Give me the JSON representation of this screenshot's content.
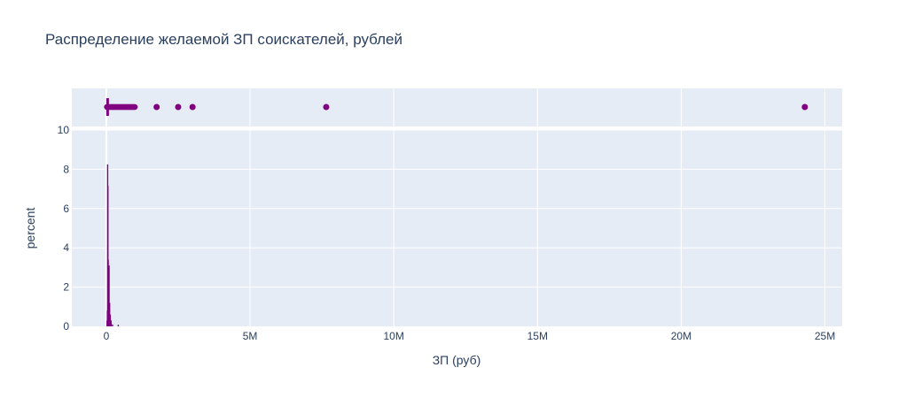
{
  "chart_data": {
    "type": "histogram",
    "title": "Распределение желаемой ЗП соискателей, рублей",
    "xlabel": "ЗП (руб)",
    "ylabel": "percent",
    "x_tick_labels": [
      "0",
      "5M",
      "10M",
      "15M",
      "20M",
      "25M"
    ],
    "x_tick_values": [
      0,
      5000000,
      10000000,
      15000000,
      20000000,
      25000000
    ],
    "y_tick_labels": [
      "0",
      "2",
      "4",
      "6",
      "8",
      "10"
    ],
    "y_tick_values": [
      0,
      2,
      4,
      6,
      8,
      10
    ],
    "xlim": [
      -1200000,
      25600000
    ],
    "ylim": [
      0,
      10
    ],
    "grid": true,
    "bar_color": "#800080",
    "plot_bg": "#e5ecf6",
    "histogram": {
      "bin_width": 10000,
      "bars": [
        {
          "x": 10000,
          "y": 0.3
        },
        {
          "x": 20000,
          "y": 0.8
        },
        {
          "x": 30000,
          "y": 8.25
        },
        {
          "x": 40000,
          "y": 7.15
        },
        {
          "x": 50000,
          "y": 3.4
        },
        {
          "x": 60000,
          "y": 2.6
        },
        {
          "x": 70000,
          "y": 1.5
        },
        {
          "x": 80000,
          "y": 3.1
        },
        {
          "x": 90000,
          "y": 0.5
        },
        {
          "x": 100000,
          "y": 1.2
        },
        {
          "x": 110000,
          "y": 0.4
        },
        {
          "x": 120000,
          "y": 0.6
        },
        {
          "x": 130000,
          "y": 0.2
        },
        {
          "x": 150000,
          "y": 0.3
        },
        {
          "x": 200000,
          "y": 0.1
        },
        {
          "x": 400000,
          "y": 0.08
        }
      ]
    },
    "strip_points": [
      1750000,
      2500000,
      3000000,
      7650000,
      24300000
    ],
    "strip_points_dense_range": [
      0,
      1000000
    ],
    "box": {
      "q1": 30000,
      "median": 40000,
      "q3": 60000,
      "lower_fence": 10000,
      "upper_fence": 100000
    }
  }
}
